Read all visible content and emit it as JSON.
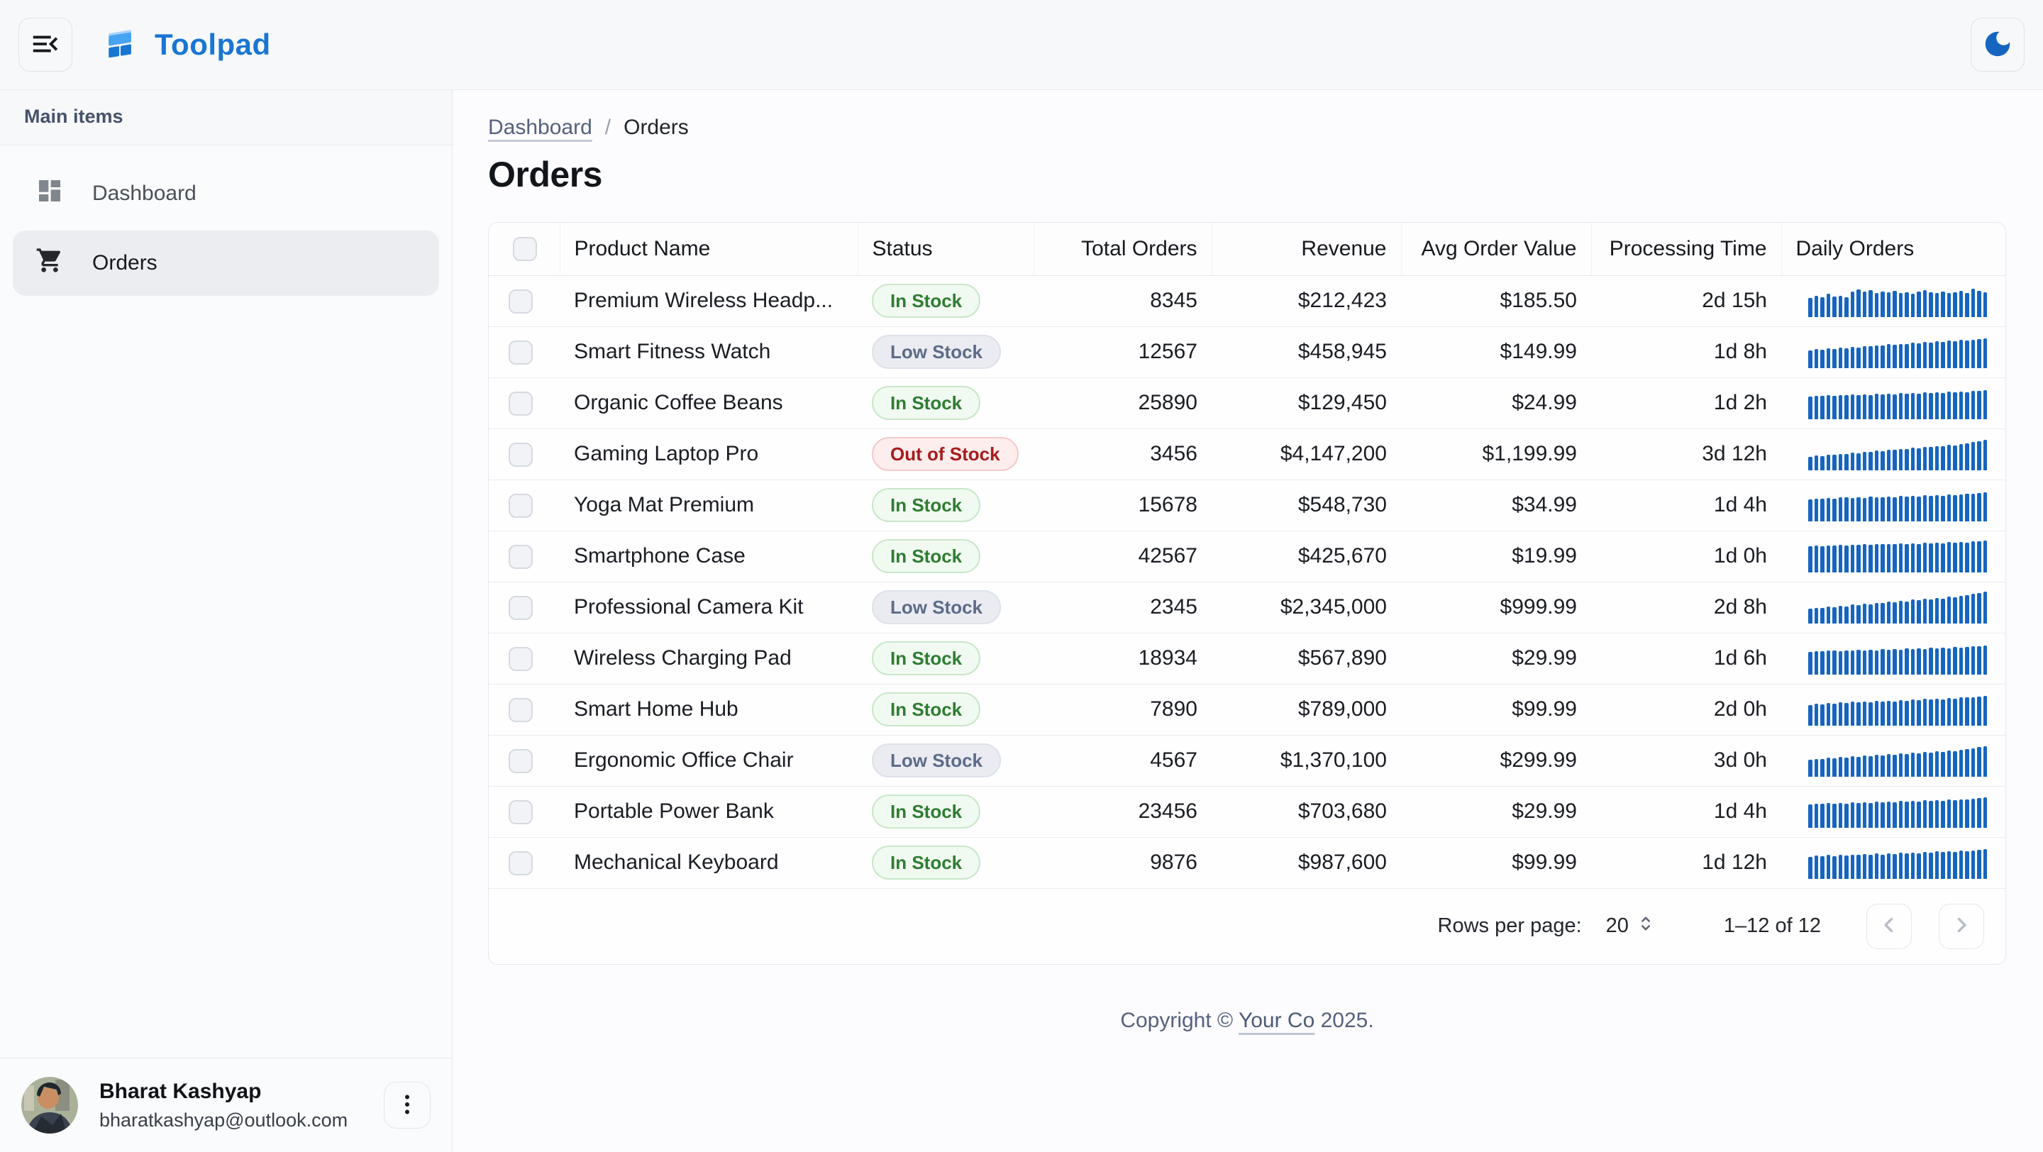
{
  "topbar": {
    "brand": "Toolpad",
    "menu_icon": "menu-open-icon",
    "theme_icon": "dark-mode-moon-icon"
  },
  "sidebar": {
    "section_label": "Main items",
    "items": [
      {
        "label": "Dashboard",
        "icon": "dashboard-icon",
        "selected": false
      },
      {
        "label": "Orders",
        "icon": "shopping-cart-icon",
        "selected": true
      }
    ],
    "user": {
      "name": "Bharat Kashyap",
      "email": "bharatkashyap@outlook.com"
    }
  },
  "breadcrumb": {
    "link": "Dashboard",
    "separator": "/",
    "current": "Orders"
  },
  "page": {
    "title": "Orders"
  },
  "table": {
    "columns": [
      {
        "label": "",
        "type": "checkbox"
      },
      {
        "label": "Product Name",
        "align": "left"
      },
      {
        "label": "Status",
        "align": "left"
      },
      {
        "label": "Total Orders",
        "align": "right"
      },
      {
        "label": "Revenue",
        "align": "right"
      },
      {
        "label": "Avg Order Value",
        "align": "right"
      },
      {
        "label": "Processing Time",
        "align": "right"
      },
      {
        "label": "Daily Orders",
        "align": "left"
      }
    ],
    "status_styles": {
      "In Stock": "in",
      "Low Stock": "low",
      "Out of Stock": "out"
    },
    "rows": [
      {
        "product": "Premium Wireless Headp...",
        "status": "In Stock",
        "total_orders": "8345",
        "revenue": "$212,423",
        "avg_order_value": "$185.50",
        "processing_time": "2d 15h",
        "daily_orders": [
          58,
          66,
          61,
          72,
          63,
          66,
          61,
          79,
          85,
          78,
          82,
          74,
          79,
          76,
          80,
          74,
          77,
          72,
          78,
          82,
          76,
          74,
          79,
          75,
          77,
          81,
          74,
          86,
          80,
          76
        ]
      },
      {
        "product": "Smart Fitness Watch",
        "status": "Low Stock",
        "total_orders": "12567",
        "revenue": "$458,945",
        "avg_order_value": "$149.99",
        "processing_time": "1d 8h",
        "daily_orders": [
          55,
          58,
          56,
          60,
          59,
          63,
          61,
          66,
          64,
          68,
          67,
          70,
          69,
          73,
          72,
          75,
          74,
          78,
          76,
          80,
          79,
          82,
          81,
          84,
          83,
          86,
          85,
          88,
          90,
          92
        ]
      },
      {
        "product": "Organic Coffee Beans",
        "status": "In Stock",
        "total_orders": "25890",
        "revenue": "$129,450",
        "avg_order_value": "$24.99",
        "processing_time": "1d 2h",
        "daily_orders": [
          70,
          72,
          71,
          74,
          72,
          75,
          73,
          76,
          74,
          77,
          75,
          78,
          76,
          79,
          77,
          80,
          78,
          81,
          79,
          82,
          80,
          83,
          81,
          84,
          82,
          85,
          83,
          86,
          88,
          90
        ]
      },
      {
        "product": "Gaming Laptop Pro",
        "status": "Out of Stock",
        "total_orders": "3456",
        "revenue": "$4,147,200",
        "avg_order_value": "$1,199.99",
        "processing_time": "3d 12h",
        "daily_orders": [
          42,
          45,
          44,
          48,
          47,
          51,
          50,
          54,
          53,
          57,
          56,
          60,
          59,
          63,
          62,
          66,
          65,
          69,
          68,
          72,
          71,
          75,
          74,
          78,
          77,
          81,
          83,
          86,
          89,
          93
        ]
      },
      {
        "product": "Yoga Mat Premium",
        "status": "In Stock",
        "total_orders": "15678",
        "revenue": "$548,730",
        "avg_order_value": "$34.99",
        "processing_time": "1d 4h",
        "daily_orders": [
          68,
          70,
          69,
          72,
          70,
          73,
          75,
          71,
          74,
          72,
          76,
          73,
          75,
          77,
          74,
          78,
          76,
          79,
          77,
          80,
          78,
          81,
          79,
          82,
          80,
          83,
          85,
          84,
          87,
          89
        ]
      },
      {
        "product": "Smartphone Case",
        "status": "In Stock",
        "total_orders": "42567",
        "revenue": "$425,670",
        "avg_order_value": "$19.99",
        "processing_time": "1d 0h",
        "daily_orders": [
          80,
          82,
          81,
          83,
          82,
          84,
          83,
          85,
          84,
          86,
          85,
          87,
          86,
          88,
          86,
          89,
          87,
          90,
          88,
          91,
          89,
          92,
          90,
          93,
          91,
          94,
          92,
          95,
          96,
          97
        ]
      },
      {
        "product": "Professional Camera Kit",
        "status": "Low Stock",
        "total_orders": "2345",
        "revenue": "$2,345,000",
        "avg_order_value": "$999.99",
        "processing_time": "2d 8h",
        "daily_orders": [
          45,
          48,
          47,
          52,
          50,
          55,
          53,
          58,
          56,
          61,
          59,
          64,
          62,
          67,
          65,
          70,
          68,
          73,
          71,
          76,
          74,
          79,
          77,
          82,
          80,
          85,
          88,
          91,
          94,
          98
        ]
      },
      {
        "product": "Wireless Charging Pad",
        "status": "In Stock",
        "total_orders": "18934",
        "revenue": "$567,890",
        "avg_order_value": "$29.99",
        "processing_time": "1d 6h",
        "daily_orders": [
          70,
          72,
          71,
          73,
          74,
          72,
          75,
          73,
          76,
          74,
          77,
          75,
          78,
          76,
          79,
          77,
          80,
          78,
          81,
          79,
          82,
          80,
          83,
          81,
          84,
          82,
          85,
          86,
          88,
          90
        ]
      },
      {
        "product": "Smart Home Hub",
        "status": "In Stock",
        "total_orders": "7890",
        "revenue": "$789,000",
        "avg_order_value": "$99.99",
        "processing_time": "2d 0h",
        "daily_orders": [
          64,
          67,
          65,
          70,
          68,
          71,
          69,
          73,
          71,
          74,
          72,
          76,
          74,
          77,
          75,
          79,
          77,
          80,
          78,
          82,
          80,
          83,
          81,
          85,
          83,
          86,
          88,
          87,
          90,
          92
        ]
      },
      {
        "product": "Ergonomic Office Chair",
        "status": "Low Stock",
        "total_orders": "4567",
        "revenue": "$1,370,100",
        "avg_order_value": "$299.99",
        "processing_time": "3d 0h",
        "daily_orders": [
          52,
          55,
          54,
          58,
          56,
          60,
          58,
          62,
          61,
          65,
          63,
          67,
          65,
          69,
          68,
          72,
          70,
          74,
          72,
          76,
          75,
          79,
          77,
          81,
          79,
          83,
          85,
          88,
          91,
          94
        ]
      },
      {
        "product": "Portable Power Bank",
        "status": "In Stock",
        "total_orders": "23456",
        "revenue": "$703,680",
        "avg_order_value": "$29.99",
        "processing_time": "1d 4h",
        "daily_orders": [
          72,
          74,
          73,
          76,
          74,
          77,
          75,
          78,
          76,
          79,
          77,
          80,
          78,
          81,
          79,
          82,
          80,
          83,
          81,
          84,
          82,
          85,
          83,
          86,
          84,
          87,
          86,
          89,
          91,
          93
        ]
      },
      {
        "product": "Mechanical Keyboard",
        "status": "In Stock",
        "total_orders": "9876",
        "revenue": "$987,600",
        "avg_order_value": "$99.99",
        "processing_time": "1d 12h",
        "daily_orders": [
          68,
          71,
          69,
          73,
          70,
          74,
          72,
          75,
          73,
          77,
          74,
          78,
          75,
          79,
          76,
          80,
          78,
          81,
          79,
          83,
          80,
          84,
          82,
          85,
          83,
          86,
          85,
          88,
          90,
          92
        ]
      }
    ]
  },
  "pagination": {
    "rows_per_page_label": "Rows per page:",
    "rows_per_page": "20",
    "range": "1–12 of 12"
  },
  "footer": {
    "prefix": "Copyright © ",
    "link": "Your Co",
    "suffix": " 2025."
  },
  "colors": {
    "brand_blue": "#1976D2",
    "accent_blue": "#1565C0",
    "chip_in_text": "#2E7D32",
    "chip_low_text": "#5C6B87",
    "chip_out_text": "#A61C1C",
    "sparkline_bar": "#1565C0"
  }
}
